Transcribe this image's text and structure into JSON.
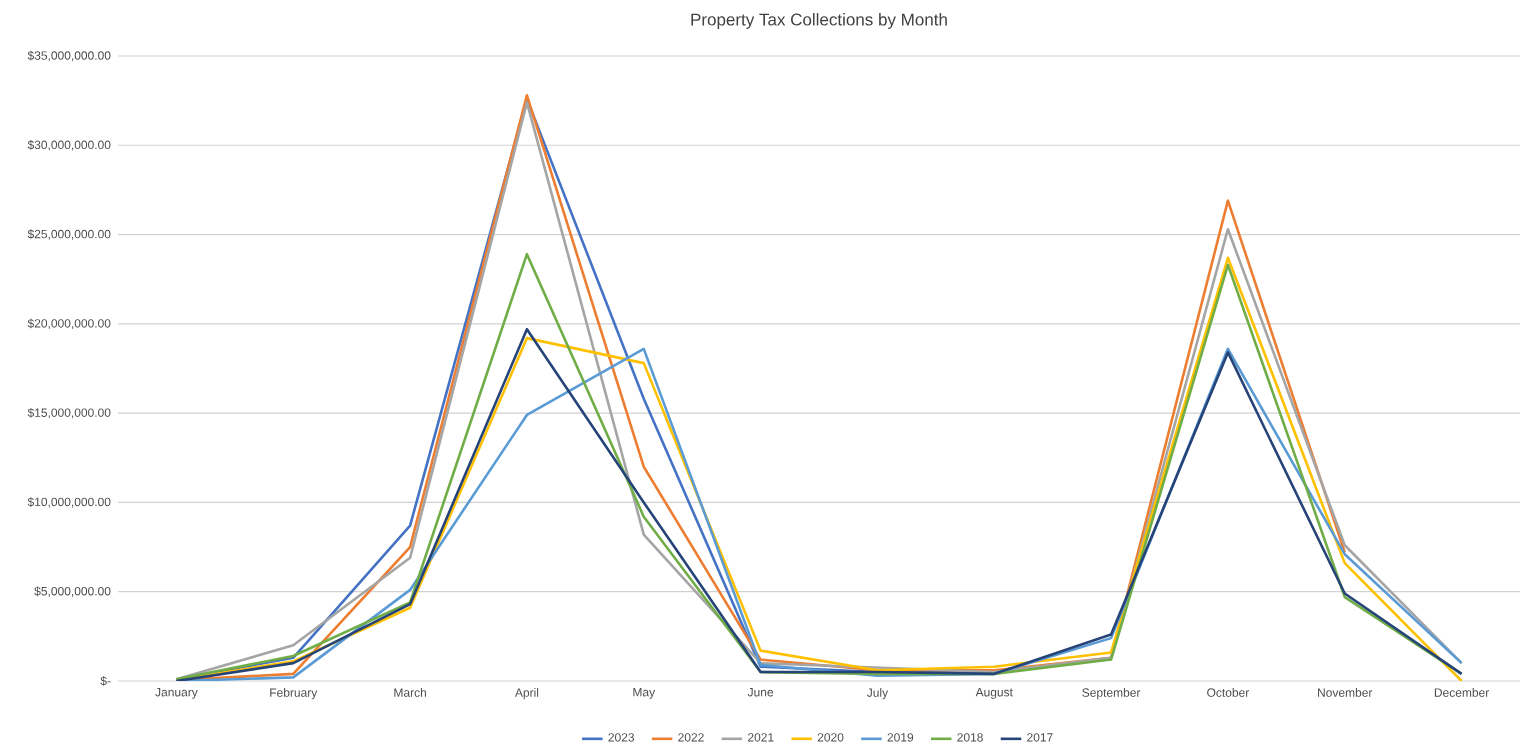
{
  "chart_data": {
    "type": "line",
    "title": "Property Tax Collections by Month",
    "categories": [
      "January",
      "February",
      "March",
      "April",
      "May",
      "June",
      "July",
      "August",
      "September",
      "October",
      "November",
      "December"
    ],
    "series": [
      {
        "name": "2023",
        "color": "#4472c4",
        "values": [
          100000,
          1300000,
          8700000,
          32600000,
          15800000,
          800000,
          500000,
          500000,
          null,
          null,
          null,
          null
        ]
      },
      {
        "name": "2022",
        "color": "#ed7d31",
        "values": [
          50000,
          400000,
          7500000,
          32800000,
          12000000,
          1200000,
          600000,
          600000,
          1300000,
          26900000,
          7200000,
          null
        ]
      },
      {
        "name": "2021",
        "color": "#a5a5a5",
        "values": [
          100000,
          2000000,
          6900000,
          32400000,
          8200000,
          1000000,
          null,
          500000,
          1300000,
          25300000,
          7600000,
          1000000
        ]
      },
      {
        "name": "2020",
        "color": "#ffc000",
        "values": [
          50000,
          1100000,
          4100000,
          19200000,
          17800000,
          1700000,
          600000,
          800000,
          1600000,
          23700000,
          6600000,
          0
        ]
      },
      {
        "name": "2019",
        "color": "#5b9bd5",
        "values": [
          0,
          200000,
          5100000,
          14900000,
          18600000,
          900000,
          300000,
          400000,
          2400000,
          18600000,
          7100000,
          1000000
        ]
      },
      {
        "name": "2018",
        "color": "#70ad47",
        "values": [
          100000,
          1400000,
          4400000,
          23900000,
          9200000,
          500000,
          400000,
          400000,
          1200000,
          23300000,
          4700000,
          400000
        ]
      },
      {
        "name": "2017",
        "color": "#264478",
        "values": [
          0,
          1000000,
          4300000,
          19700000,
          10000000,
          500000,
          500000,
          400000,
          2600000,
          18400000,
          4900000,
          400000
        ]
      }
    ],
    "ylim": [
      0,
      35000000
    ],
    "yticks": [
      {
        "value": 0,
        "label": "$-"
      },
      {
        "value": 5000000,
        "label": "$5,000,000.00"
      },
      {
        "value": 10000000,
        "label": "$10,000,000.00"
      },
      {
        "value": 15000000,
        "label": "$15,000,000.00"
      },
      {
        "value": 20000000,
        "label": "$20,000,000.00"
      },
      {
        "value": 25000000,
        "label": "$25,000,000.00"
      },
      {
        "value": 30000000,
        "label": "$30,000,000.00"
      },
      {
        "value": 35000000,
        "label": "$35,000,000.00"
      }
    ],
    "grid": "y",
    "legend": "bottom",
    "marker": "none",
    "line_style": "solid"
  }
}
